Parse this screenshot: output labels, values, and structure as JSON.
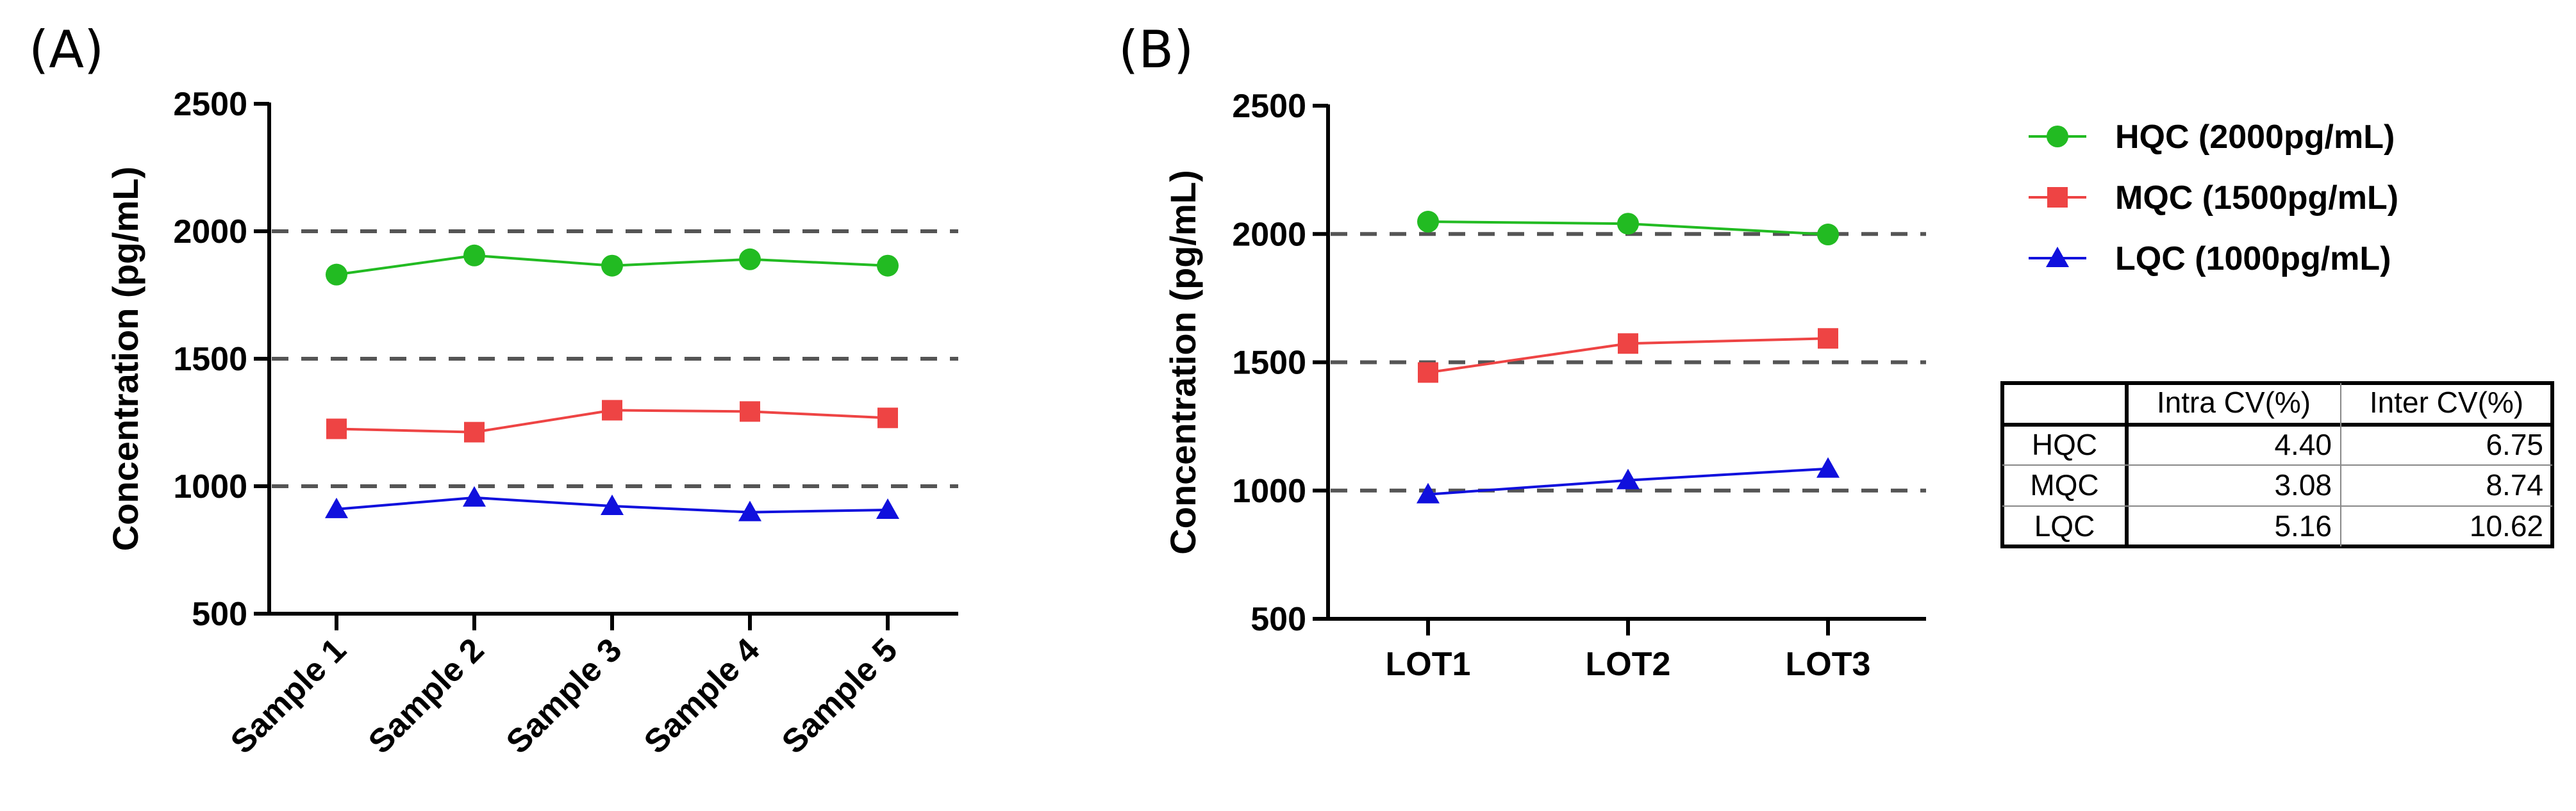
{
  "chart_data": [
    {
      "panel": "(A)",
      "type": "line",
      "ylabel": "Concentration (pg/mL)",
      "ylim": [
        500,
        2500
      ],
      "yticks": [
        500,
        1000,
        1500,
        2000,
        2500
      ],
      "categories": [
        "Sample 1",
        "Sample 2",
        "Sample 3",
        "Sample 4",
        "Sample 5"
      ],
      "reference_lines": [
        1000,
        1500,
        2000
      ],
      "series": [
        {
          "name": "HQC (2000pg/mL)",
          "marker": "circle",
          "color": "#22bb22",
          "values": [
            1830,
            1905,
            1865,
            1890,
            1865
          ]
        },
        {
          "name": "MQC (1500pg/mL)",
          "marker": "square",
          "color": "#ee4444",
          "values": [
            1225,
            1212,
            1298,
            1293,
            1268
          ]
        },
        {
          "name": "LQC (1000pg/mL)",
          "marker": "triangle",
          "color": "#1010dd",
          "values": [
            910,
            955,
            922,
            898,
            907
          ]
        }
      ]
    },
    {
      "panel": "(B)",
      "type": "line",
      "ylabel": "Concentration (pg/mL)",
      "ylim": [
        500,
        2500
      ],
      "yticks": [
        500,
        1000,
        1500,
        2000,
        2500
      ],
      "categories": [
        "LOT1",
        "LOT2",
        "LOT3"
      ],
      "reference_lines": [
        1000,
        1500,
        2000
      ],
      "series": [
        {
          "name": "HQC (2000pg/mL)",
          "marker": "circle",
          "color": "#22bb22",
          "values": [
            2048,
            2040,
            1998
          ]
        },
        {
          "name": "MQC (1500pg/mL)",
          "marker": "square",
          "color": "#ee4444",
          "values": [
            1460,
            1573,
            1593
          ]
        },
        {
          "name": "LQC (1000pg/mL)",
          "marker": "triangle",
          "color": "#1010dd",
          "values": [
            985,
            1040,
            1085
          ]
        }
      ]
    }
  ],
  "legend": [
    {
      "label": "HQC (2000pg/mL)",
      "marker": "circle",
      "color": "#22bb22"
    },
    {
      "label": "MQC (1500pg/mL)",
      "marker": "square",
      "color": "#ee4444"
    },
    {
      "label": "LQC (1000pg/mL)",
      "marker": "triangle",
      "color": "#1010dd"
    }
  ],
  "cv_table": {
    "headers": [
      "",
      "Intra CV(%)",
      "Inter CV(%)"
    ],
    "rows": [
      [
        "HQC",
        "4.40",
        "6.75"
      ],
      [
        "MQC",
        "3.08",
        "8.74"
      ],
      [
        "LQC",
        "5.16",
        "10.62"
      ]
    ]
  }
}
